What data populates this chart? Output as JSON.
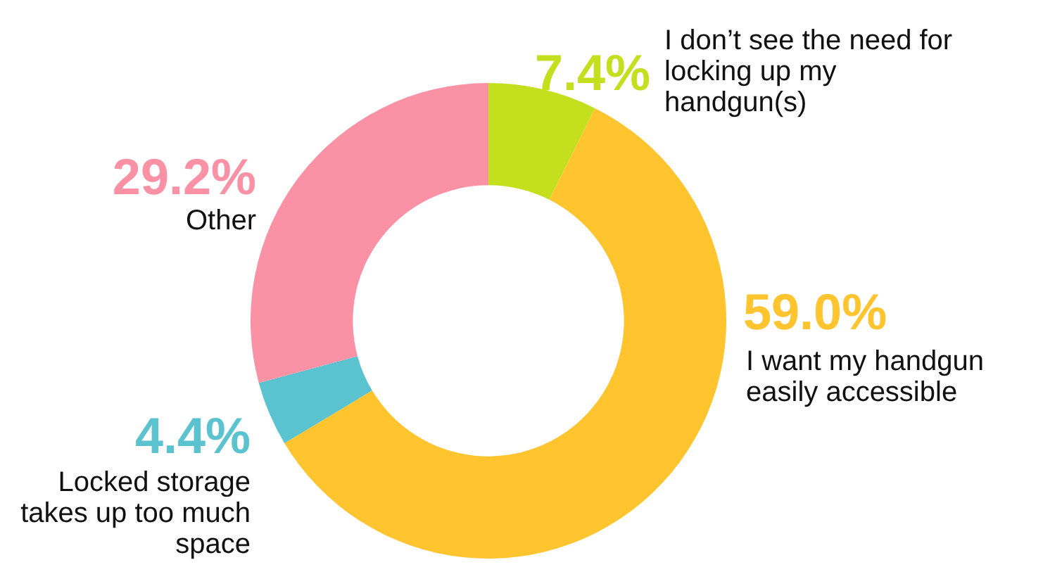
{
  "chart_data": {
    "type": "donut",
    "categories": [
      "I don’t see the need for locking up my handgun(s)",
      "I want my handgun easily accessible",
      "Locked storage takes up too much space",
      "Other"
    ],
    "values": [
      7.4,
      59.0,
      4.4,
      29.2
    ],
    "colors": [
      "#c3df1e",
      "#ffc42e",
      "#5bc2cf",
      "#fb91a4"
    ],
    "value_labels": [
      "7.4%",
      "59.0%",
      "4.4%",
      "29.2%"
    ],
    "legend": false
  }
}
